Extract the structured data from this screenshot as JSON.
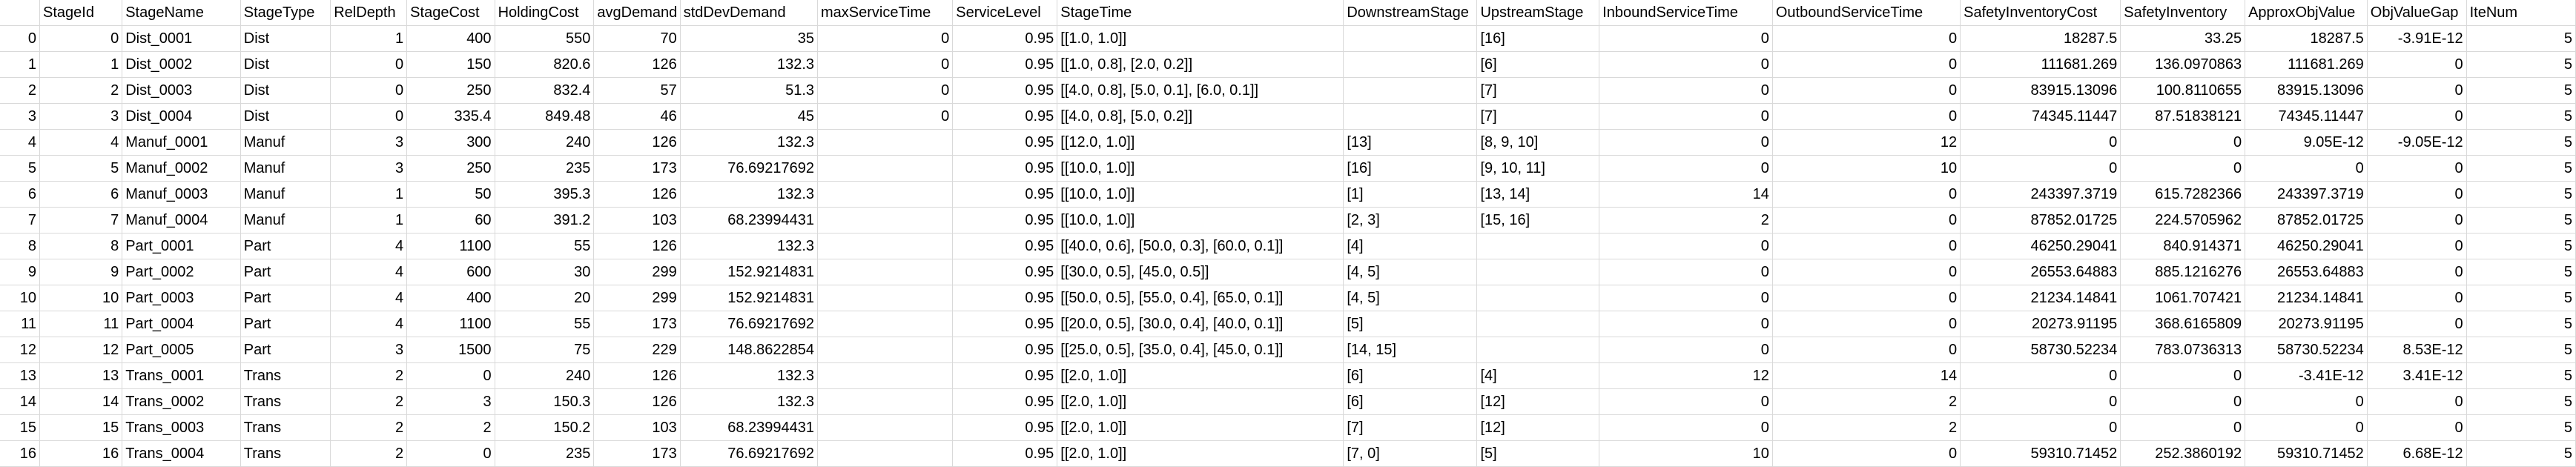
{
  "columns": [
    "",
    "StageId",
    "StageName",
    "StageType",
    "RelDepth",
    "StageCost",
    "HoldingCost",
    "avgDemand",
    "stdDevDemand",
    "maxServiceTime",
    "ServiceLevel",
    "StageTime",
    "DownstreamStage",
    "UpstreamStage",
    "InboundServiceTime",
    "OutboundServiceTime",
    "SafetyInventoryCost",
    "SafetyInventory",
    "ApproxObjValue",
    "ObjValueGap",
    "IteNum"
  ],
  "rows": [
    [
      "0",
      "0",
      "Dist_0001",
      "Dist",
      "1",
      "400",
      "550",
      "70",
      "35",
      "0",
      "0.95",
      "[[1.0, 1.0]]",
      "",
      "[16]",
      "0",
      "0",
      "18287.5",
      "33.25",
      "18287.5",
      "-3.91E-12",
      "5"
    ],
    [
      "1",
      "1",
      "Dist_0002",
      "Dist",
      "0",
      "150",
      "820.6",
      "126",
      "132.3",
      "0",
      "0.95",
      "[[1.0, 0.8], [2.0, 0.2]]",
      "",
      "[6]",
      "0",
      "0",
      "111681.269",
      "136.0970863",
      "111681.269",
      "0",
      "5"
    ],
    [
      "2",
      "2",
      "Dist_0003",
      "Dist",
      "0",
      "250",
      "832.4",
      "57",
      "51.3",
      "0",
      "0.95",
      "[[4.0, 0.8], [5.0, 0.1], [6.0, 0.1]]",
      "",
      "[7]",
      "0",
      "0",
      "83915.13096",
      "100.8110655",
      "83915.13096",
      "0",
      "5"
    ],
    [
      "3",
      "3",
      "Dist_0004",
      "Dist",
      "0",
      "335.4",
      "849.48",
      "46",
      "45",
      "0",
      "0.95",
      "[[4.0, 0.8], [5.0, 0.2]]",
      "",
      "[7]",
      "0",
      "0",
      "74345.11447",
      "87.51838121",
      "74345.11447",
      "0",
      "5"
    ],
    [
      "4",
      "4",
      "Manuf_0001",
      "Manuf",
      "3",
      "300",
      "240",
      "126",
      "132.3",
      "",
      "0.95",
      "[[12.0, 1.0]]",
      "[13]",
      "[8, 9, 10]",
      "0",
      "12",
      "0",
      "0",
      "9.05E-12",
      "-9.05E-12",
      "5"
    ],
    [
      "5",
      "5",
      "Manuf_0002",
      "Manuf",
      "3",
      "250",
      "235",
      "173",
      "76.69217692",
      "",
      "0.95",
      "[[10.0, 1.0]]",
      "[16]",
      "[9, 10, 11]",
      "0",
      "10",
      "0",
      "0",
      "0",
      "0",
      "5"
    ],
    [
      "6",
      "6",
      "Manuf_0003",
      "Manuf",
      "1",
      "50",
      "395.3",
      "126",
      "132.3",
      "",
      "0.95",
      "[[10.0, 1.0]]",
      "[1]",
      "[13, 14]",
      "14",
      "0",
      "243397.3719",
      "615.7282366",
      "243397.3719",
      "0",
      "5"
    ],
    [
      "7",
      "7",
      "Manuf_0004",
      "Manuf",
      "1",
      "60",
      "391.2",
      "103",
      "68.23994431",
      "",
      "0.95",
      "[[10.0, 1.0]]",
      "[2, 3]",
      "[15, 16]",
      "2",
      "0",
      "87852.01725",
      "224.5705962",
      "87852.01725",
      "0",
      "5"
    ],
    [
      "8",
      "8",
      "Part_0001",
      "Part",
      "4",
      "1100",
      "55",
      "126",
      "132.3",
      "",
      "0.95",
      "[[40.0, 0.6], [50.0, 0.3], [60.0, 0.1]]",
      "[4]",
      "",
      "0",
      "0",
      "46250.29041",
      "840.914371",
      "46250.29041",
      "0",
      "5"
    ],
    [
      "9",
      "9",
      "Part_0002",
      "Part",
      "4",
      "600",
      "30",
      "299",
      "152.9214831",
      "",
      "0.95",
      "[[30.0, 0.5], [45.0, 0.5]]",
      "[4, 5]",
      "",
      "0",
      "0",
      "26553.64883",
      "885.1216276",
      "26553.64883",
      "0",
      "5"
    ],
    [
      "10",
      "10",
      "Part_0003",
      "Part",
      "4",
      "400",
      "20",
      "299",
      "152.9214831",
      "",
      "0.95",
      "[[50.0, 0.5], [55.0, 0.4], [65.0, 0.1]]",
      "[4, 5]",
      "",
      "0",
      "0",
      "21234.14841",
      "1061.707421",
      "21234.14841",
      "0",
      "5"
    ],
    [
      "11",
      "11",
      "Part_0004",
      "Part",
      "4",
      "1100",
      "55",
      "173",
      "76.69217692",
      "",
      "0.95",
      "[[20.0, 0.5], [30.0, 0.4], [40.0, 0.1]]",
      "[5]",
      "",
      "0",
      "0",
      "20273.91195",
      "368.6165809",
      "20273.91195",
      "0",
      "5"
    ],
    [
      "12",
      "12",
      "Part_0005",
      "Part",
      "3",
      "1500",
      "75",
      "229",
      "148.8622854",
      "",
      "0.95",
      "[[25.0, 0.5], [35.0, 0.4], [45.0, 0.1]]",
      "[14, 15]",
      "",
      "0",
      "0",
      "58730.52234",
      "783.0736313",
      "58730.52234",
      "8.53E-12",
      "5"
    ],
    [
      "13",
      "13",
      "Trans_0001",
      "Trans",
      "2",
      "0",
      "240",
      "126",
      "132.3",
      "",
      "0.95",
      "[[2.0, 1.0]]",
      "[6]",
      "[4]",
      "12",
      "14",
      "0",
      "0",
      "-3.41E-12",
      "3.41E-12",
      "5"
    ],
    [
      "14",
      "14",
      "Trans_0002",
      "Trans",
      "2",
      "3",
      "150.3",
      "126",
      "132.3",
      "",
      "0.95",
      "[[2.0, 1.0]]",
      "[6]",
      "[12]",
      "0",
      "2",
      "0",
      "0",
      "0",
      "0",
      "5"
    ],
    [
      "15",
      "15",
      "Trans_0003",
      "Trans",
      "2",
      "2",
      "150.2",
      "103",
      "68.23994431",
      "",
      "0.95",
      "[[2.0, 1.0]]",
      "[7]",
      "[12]",
      "0",
      "2",
      "0",
      "0",
      "0",
      "0",
      "5"
    ],
    [
      "16",
      "16",
      "Trans_0004",
      "Trans",
      "2",
      "0",
      "235",
      "173",
      "76.69217692",
      "",
      "0.95",
      "[[2.0, 1.0]]",
      "[7, 0]",
      "[5]",
      "10",
      "0",
      "59310.71452",
      "252.3860192",
      "59310.71452",
      "6.68E-12",
      "5"
    ]
  ]
}
